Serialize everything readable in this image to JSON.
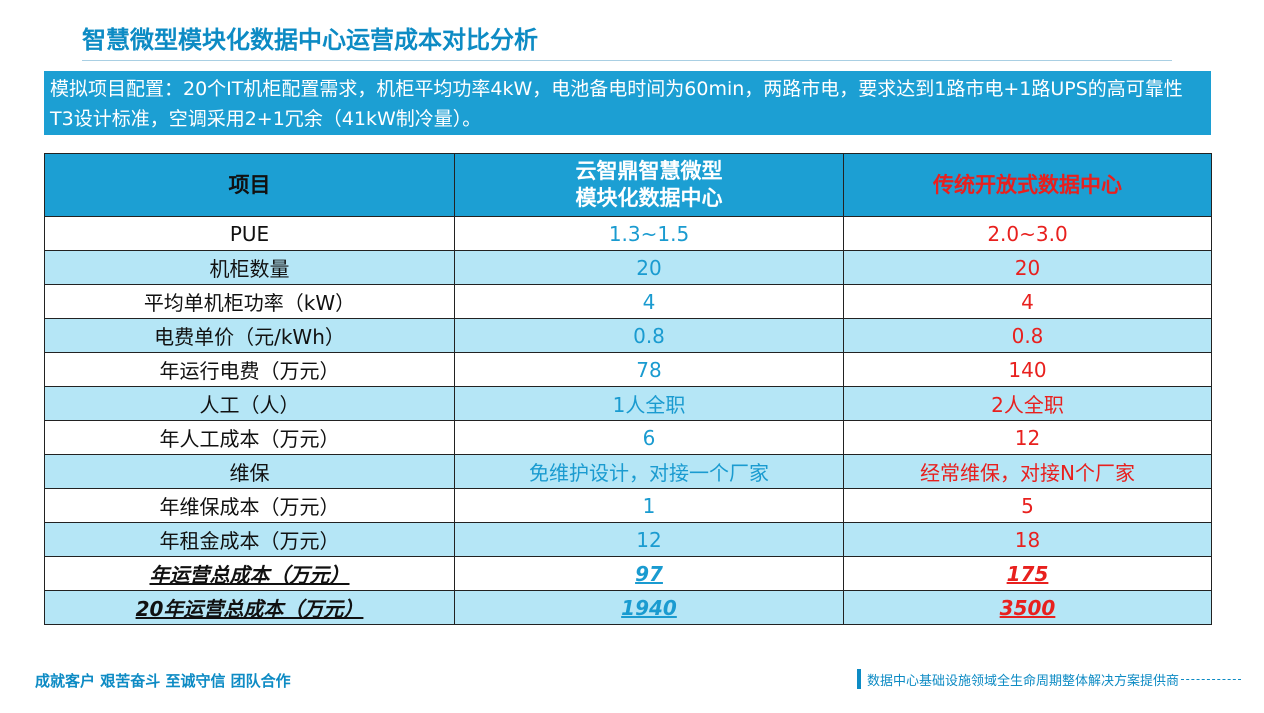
{
  "title": "智慧微型模块化数据中心运营成本对比分析",
  "config": "模拟项目配置：20个IT机柜配置需求，机柜平均功率4kW，电池备电时间为60min，两路市电，要求达到1路市电+1路UPS的高可靠性T3设计标准，空调采用2+1冗余（41kW制冷量）。",
  "table": {
    "headers": {
      "item": "项目",
      "ours_line1": "云智鼎智慧微型",
      "ours_line2": "模块化数据中心",
      "trad": "传统开放式数据中心"
    },
    "rows": [
      {
        "item": "PUE",
        "ours": "1.3~1.5",
        "trad": "2.0~3.0"
      },
      {
        "item": "机柜数量",
        "ours": "20",
        "trad": "20"
      },
      {
        "item": "平均单机柜功率（kW）",
        "ours": "4",
        "trad": "4"
      },
      {
        "item": "电费单价（元/kWh）",
        "ours": "0.8",
        "trad": "0.8"
      },
      {
        "item": "年运行电费（万元）",
        "ours": "78",
        "trad": "140"
      },
      {
        "item": "人工（人）",
        "ours": "1人全职",
        "trad": "2人全职"
      },
      {
        "item": "年人工成本（万元）",
        "ours": "6",
        "trad": "12"
      },
      {
        "item": "维保",
        "ours": "免维护设计，对接一个厂家",
        "trad": "经常维保，对接N个厂家"
      },
      {
        "item": "年维保成本（万元）",
        "ours": "1",
        "trad": "5"
      },
      {
        "item": "年租金成本（万元）",
        "ours": "12",
        "trad": "18"
      },
      {
        "item": "年运营总成本（万元）",
        "ours": "97",
        "trad": "175"
      },
      {
        "item": "20年运营总成本（万元）",
        "ours": "1940",
        "trad": "3500"
      }
    ]
  },
  "footer": {
    "slogan": "成就客户 艰苦奋斗 至诚守信 团队合作",
    "tagline": "数据中心基础设施领域全生命周期整体解决方案提供商"
  },
  "colors": {
    "accent_blue": "#1c9fd3",
    "title_blue": "#0d8bc4",
    "row_tint": "#b5e6f6",
    "traditional_red": "#e8201e"
  }
}
